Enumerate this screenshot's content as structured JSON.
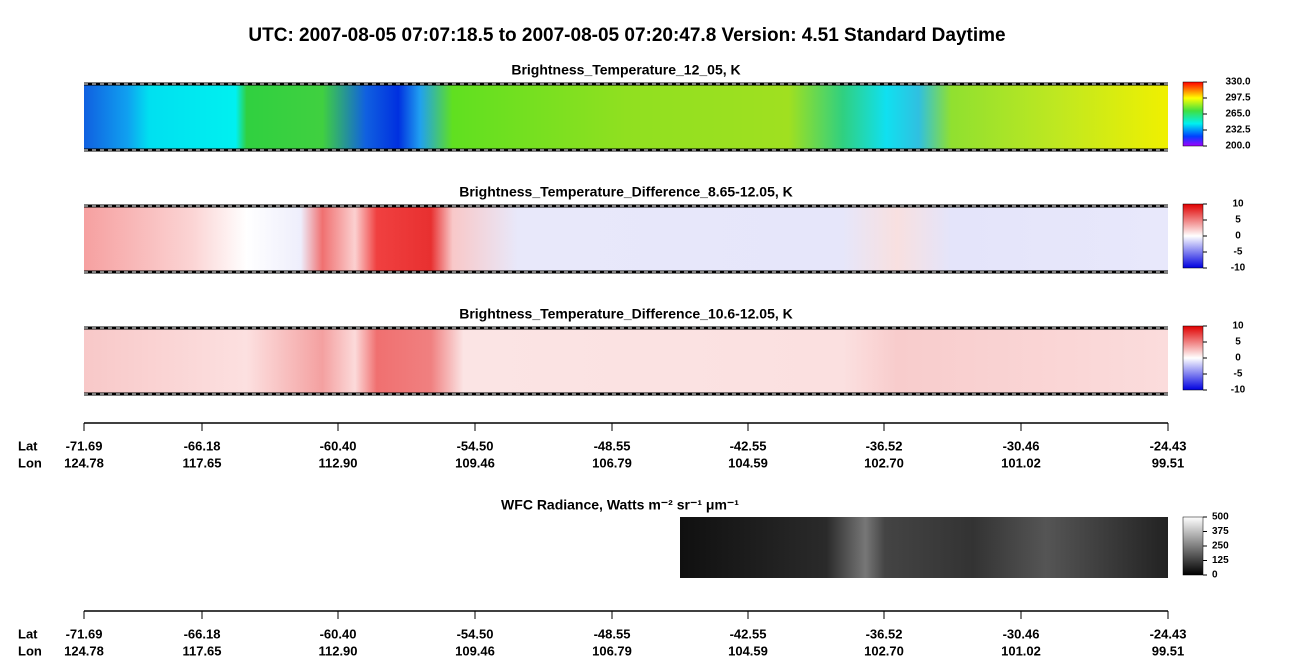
{
  "header": {
    "title": "UTC:  2007-08-05   07:07:18.5  to  2007-08-05   07:20:47.8    Version: 4.51  Standard Daytime"
  },
  "panels": [
    {
      "title": "Brightness_Temperature_12_05, K",
      "colorbar_ticks": [
        "330.0",
        "297.5",
        "265.0",
        "232.5",
        "200.0"
      ]
    },
    {
      "title": "Brightness_Temperature_Difference_8.65-12.05, K",
      "colorbar_ticks": [
        "10",
        "5",
        "0",
        "-5",
        "-10"
      ]
    },
    {
      "title": "Brightness_Temperature_Difference_10.6-12.05, K",
      "colorbar_ticks": [
        "10",
        "5",
        "0",
        "-5",
        "-10"
      ]
    }
  ],
  "wfc": {
    "title": "WFC Radiance, Watts m⁻² sr⁻¹ μm⁻¹",
    "colorbar_ticks": [
      "500",
      "375",
      "250",
      "125",
      "0"
    ]
  },
  "axes": [
    {
      "lat_label": "Lat",
      "lon_label": "Lon",
      "lat": [
        "-71.69",
        "-66.18",
        "-60.40",
        "-54.50",
        "-48.55",
        "-42.55",
        "-36.52",
        "-30.46",
        "-24.43"
      ],
      "lon": [
        "124.78",
        "117.65",
        "112.90",
        "109.46",
        "106.79",
        "104.59",
        "102.70",
        "101.02",
        "99.51"
      ]
    },
    {
      "lat_label": "Lat",
      "lon_label": "Lon",
      "lat": [
        "-71.69",
        "-66.18",
        "-60.40",
        "-54.50",
        "-48.55",
        "-42.55",
        "-36.52",
        "-30.46",
        "-24.43"
      ],
      "lon": [
        "124.78",
        "117.65",
        "112.90",
        "109.46",
        "106.79",
        "104.59",
        "102.70",
        "101.02",
        "99.51"
      ]
    }
  ]
}
